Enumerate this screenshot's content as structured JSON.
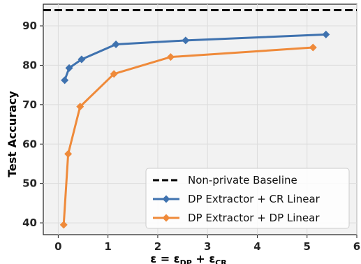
{
  "chart_data": {
    "type": "line",
    "ylabel": "Test Accuracy",
    "xlabel": {
      "main": "ε = ε",
      "sub1": "DP",
      "mid": " + ε",
      "sub2": "CR"
    },
    "xlim": [
      -0.3,
      6.0
    ],
    "ylim": [
      37,
      95.5
    ],
    "xticks": [
      0,
      1,
      2,
      3,
      4,
      5,
      6
    ],
    "yticks": [
      40,
      50,
      60,
      70,
      80,
      90
    ],
    "grid": true,
    "legend_position": "lower-right",
    "baseline": {
      "name": "Non-private Baseline",
      "value": 94.0,
      "color": "#000000",
      "style": "dashed"
    },
    "series": [
      {
        "name": "DP Extractor + CR Linear",
        "color": "#3f72af",
        "marker": "diamond",
        "x": [
          0.13,
          0.22,
          0.47,
          1.16,
          2.56,
          5.38
        ],
        "y": [
          76.2,
          79.3,
          81.5,
          85.3,
          86.3,
          87.8
        ]
      },
      {
        "name": "DP Extractor + DP Linear",
        "color": "#ef8a3a",
        "marker": "diamond",
        "x": [
          0.11,
          0.2,
          0.44,
          1.12,
          2.26,
          5.12
        ],
        "y": [
          39.5,
          57.5,
          69.5,
          77.8,
          82.1,
          84.5
        ]
      }
    ]
  }
}
